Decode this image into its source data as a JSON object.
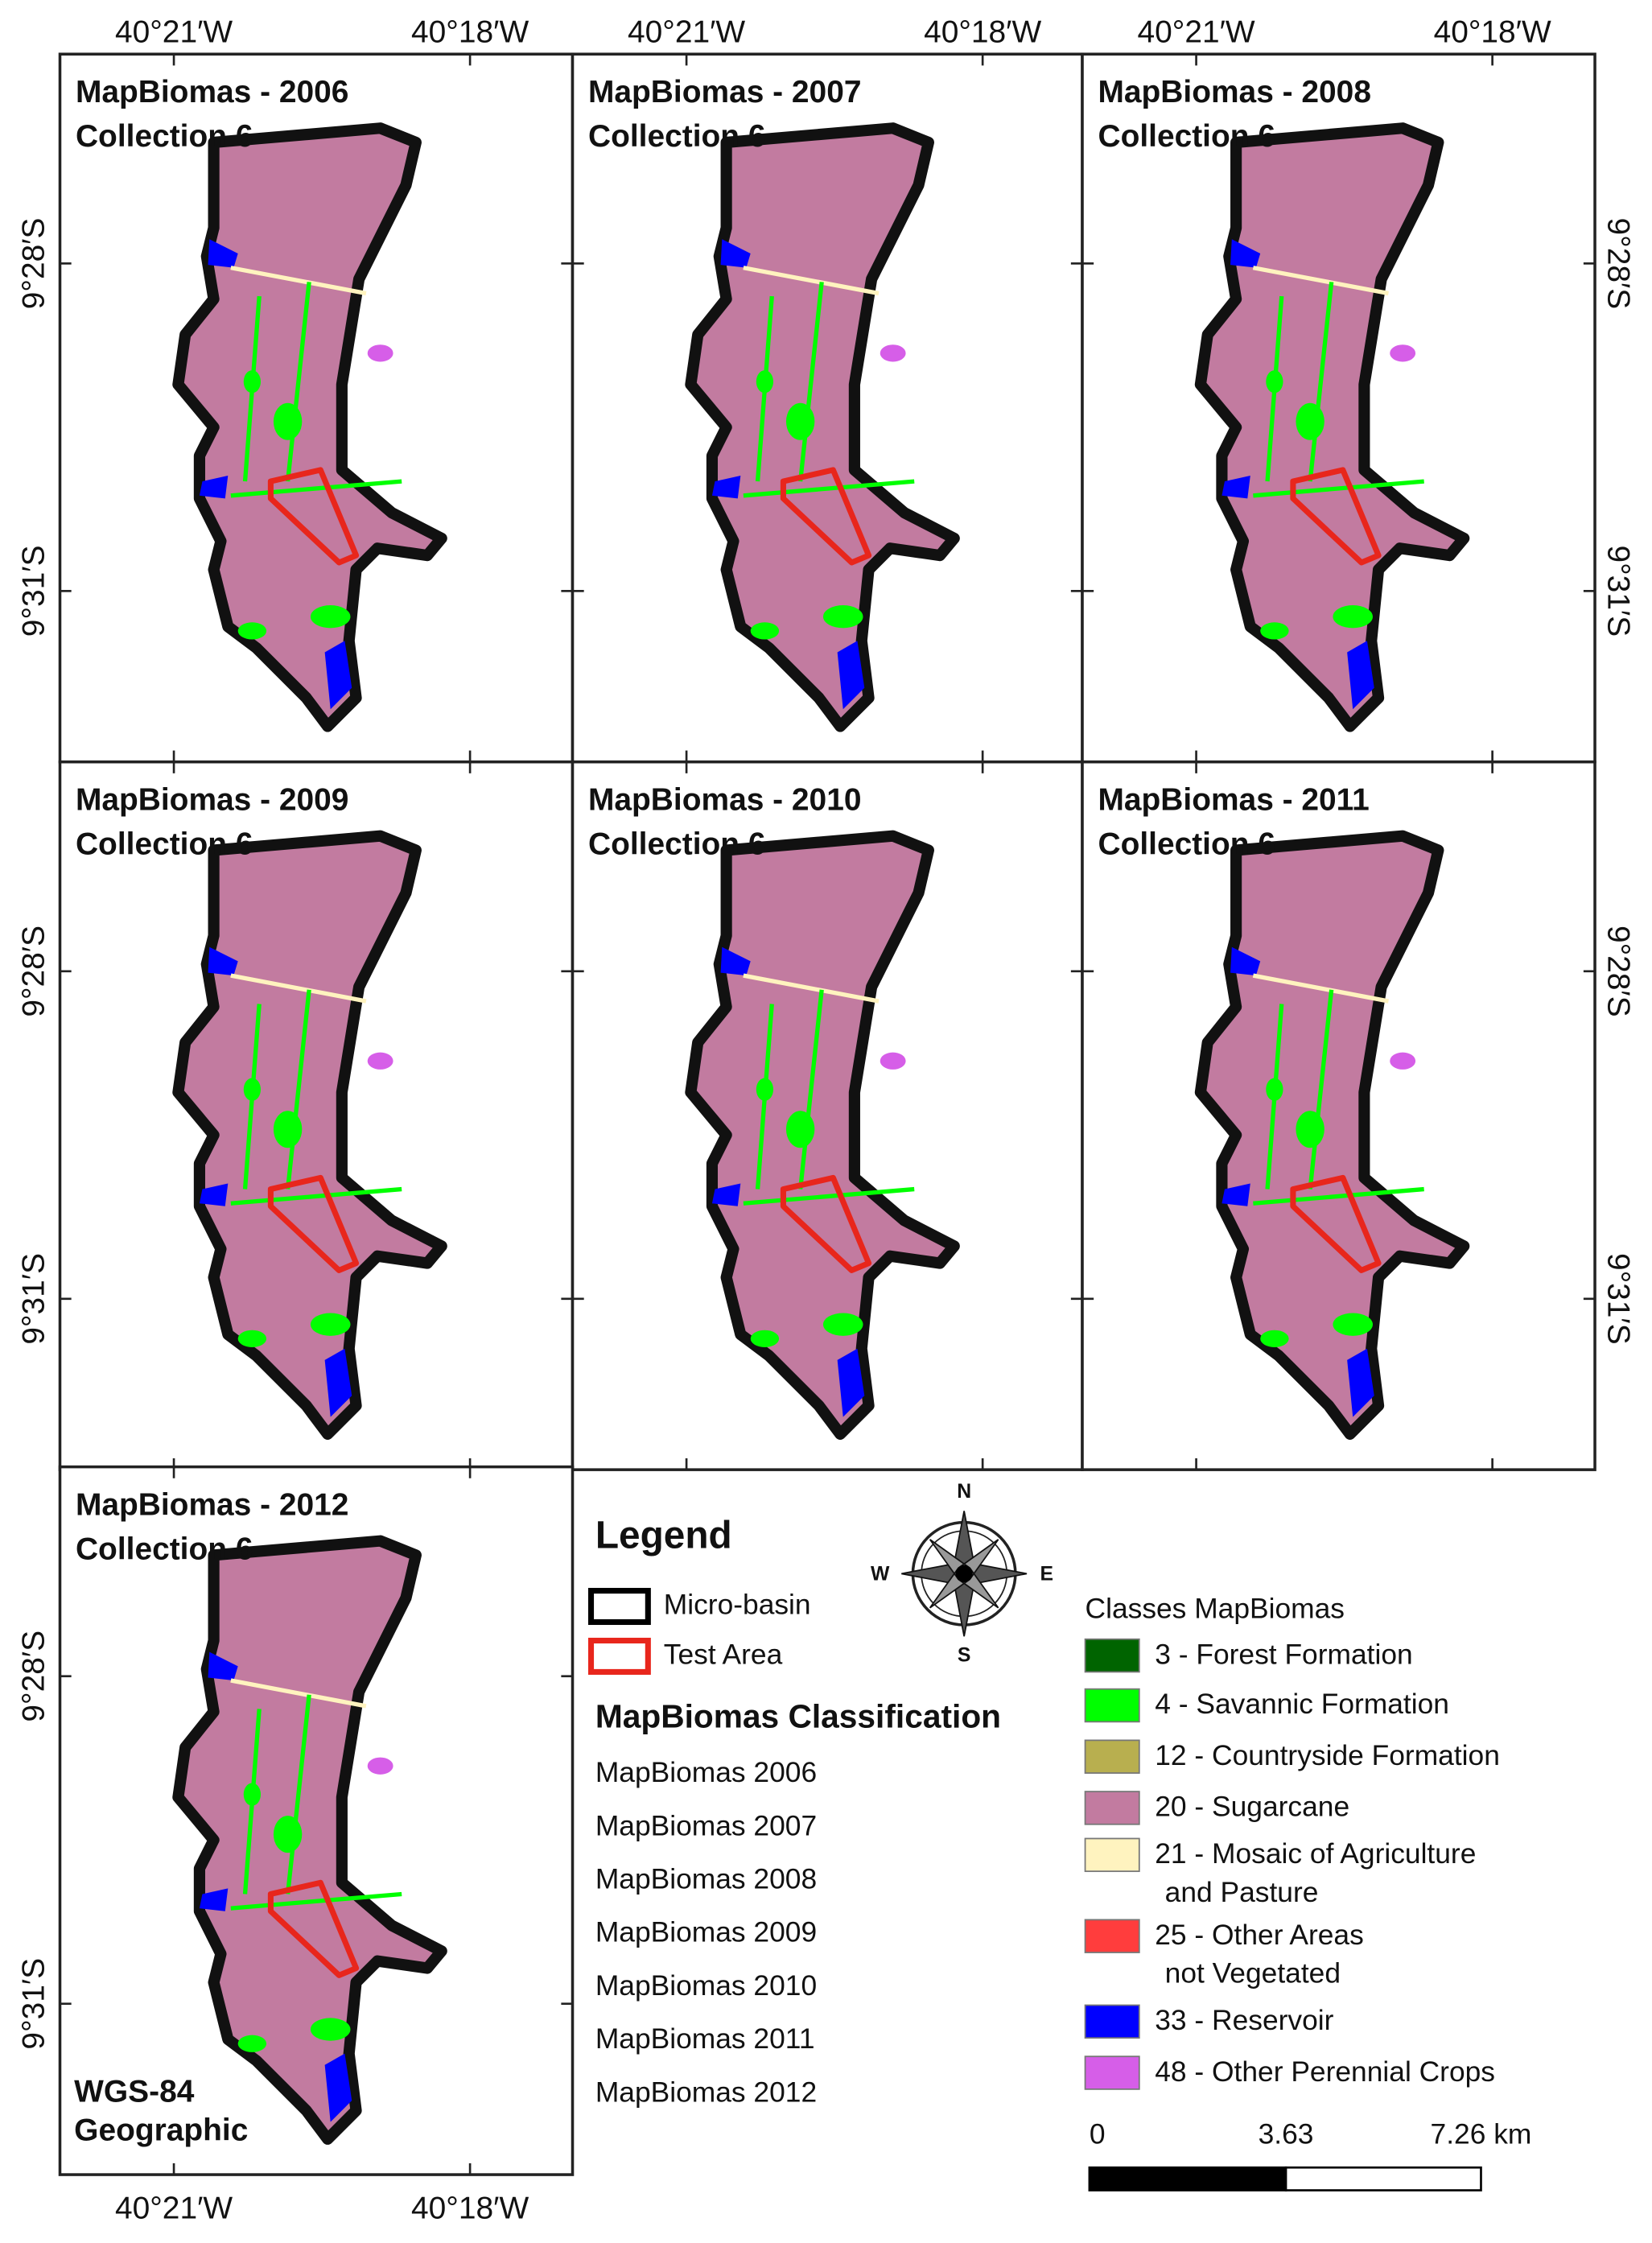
{
  "panels": [
    {
      "title": "MapBiomas - 2006",
      "subtitle": "Collection 6"
    },
    {
      "title": "MapBiomas - 2007",
      "subtitle": "Collection 6"
    },
    {
      "title": "MapBiomas - 2008",
      "subtitle": "Collection 6"
    },
    {
      "title": "MapBiomas - 2009",
      "subtitle": "Collection 6"
    },
    {
      "title": "MapBiomas - 2010",
      "subtitle": "Collection 6"
    },
    {
      "title": "MapBiomas - 2011",
      "subtitle": "Collection 6"
    },
    {
      "title": "MapBiomas - 2012",
      "subtitle": "Collection 6"
    }
  ],
  "axis_labels": {
    "lon": [
      "40°21′W",
      "40°18′W"
    ],
    "lat": [
      "9°28′S",
      "9°31′S"
    ]
  },
  "crs": [
    "WGS-84",
    "Geographic"
  ],
  "legend": {
    "title": "Legend",
    "items": [
      {
        "label": "Micro-basin",
        "color": "#000000"
      },
      {
        "label": "Test Area",
        "color": "#e8261c"
      }
    ]
  },
  "classification": {
    "title": "MapBiomas Classification",
    "items": [
      "MapBiomas 2006",
      "MapBiomas 2007",
      "MapBiomas 2008",
      "MapBiomas 2009",
      "MapBiomas 2010",
      "MapBiomas 2011",
      "MapBiomas 2012"
    ]
  },
  "classes": {
    "title": "Classes MapBiomas",
    "items": [
      {
        "lines": [
          "3 - Forest Formation"
        ],
        "color": "#006400"
      },
      {
        "lines": [
          "4 - Savannic Formation"
        ],
        "color": "#00ff00"
      },
      {
        "lines": [
          "12 - Countryside Formation"
        ],
        "color": "#b8af4f"
      },
      {
        "lines": [
          "20 - Sugarcane"
        ],
        "color": "#c27ba0"
      },
      {
        "lines": [
          "21 - Mosaic of Agriculture",
          "and Pasture"
        ],
        "color": "#fff3bf"
      },
      {
        "lines": [
          "25 - Other Areas",
          "not Vegetated"
        ],
        "color": "#ff3d3d"
      },
      {
        "lines": [
          "33 - Reservoir"
        ],
        "color": "#0000ff"
      },
      {
        "lines": [
          "48 - Other Perennial Crops"
        ],
        "color": "#d65ee8"
      }
    ]
  },
  "compass": {
    "n": "N",
    "s": "S",
    "e": "E",
    "w": "W"
  },
  "scale": {
    "labels": [
      "0",
      "3.63",
      "7.26 km"
    ]
  }
}
